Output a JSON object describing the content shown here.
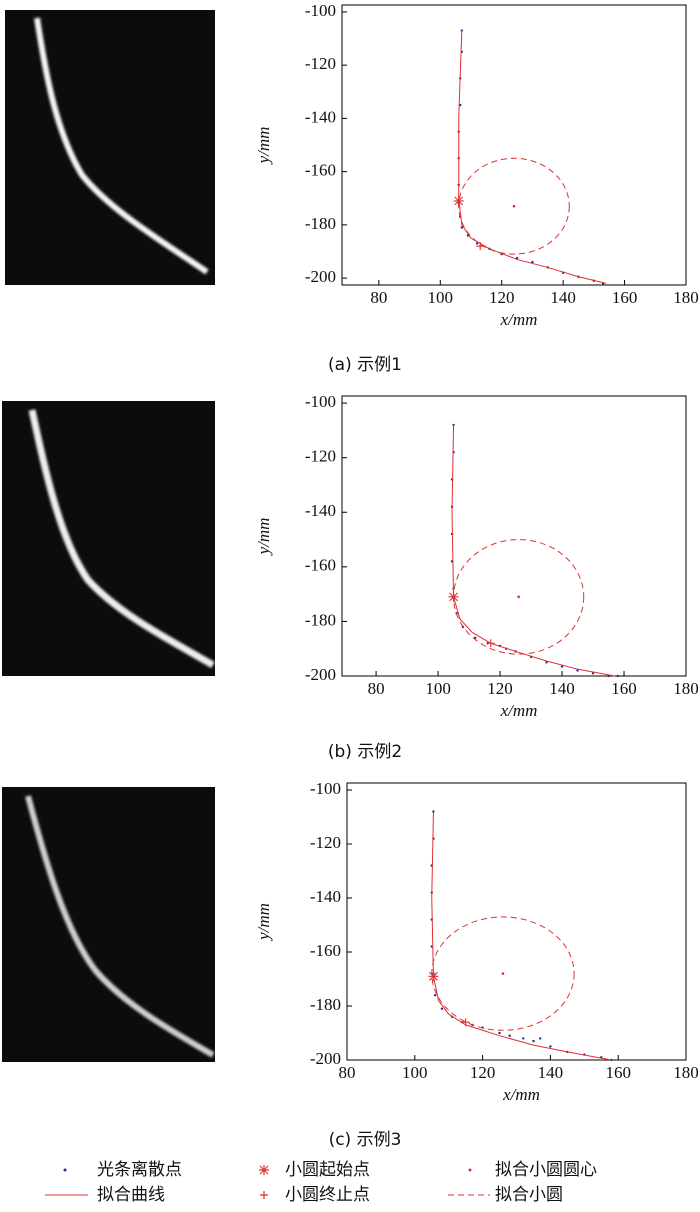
{
  "chart_data": [
    {
      "type": "scatter",
      "caption": "(a) 示例1",
      "xlabel": "x/mm",
      "ylabel": "y/mm",
      "xlim": [
        68,
        180
      ],
      "ylim": [
        -202.6,
        -97.4
      ],
      "xticks": [
        80,
        100,
        120,
        140,
        160,
        180
      ],
      "yticks": [
        -100,
        -120,
        -140,
        -160,
        -180,
        -200
      ],
      "series": [
        {
          "name": "光条离散点",
          "color": "#1f2f8f",
          "kind": "points",
          "x": [
            107,
            107,
            106.5,
            106.5,
            106,
            106,
            106,
            106,
            106.5,
            107,
            109,
            112,
            116,
            120,
            125,
            130,
            135,
            140,
            145,
            150,
            153
          ],
          "y": [
            -107,
            -115,
            -125,
            -135,
            -145,
            -155,
            -165,
            -172,
            -177,
            -181,
            -184,
            -187,
            -189,
            -191,
            -192.5,
            -194,
            -196,
            -198,
            -199.5,
            -201,
            -202
          ]
        },
        {
          "name": "拟合曲线",
          "color": "#e03030",
          "kind": "line",
          "x": [
            107,
            106,
            106,
            107,
            110,
            116,
            125,
            135,
            145,
            154
          ],
          "y": [
            -107,
            -140,
            -170,
            -180,
            -185,
            -189,
            -193,
            -196,
            -199.5,
            -202
          ]
        },
        {
          "name": "小圆起始点",
          "color": "#e03030",
          "kind": "star",
          "x": [
            106
          ],
          "y": [
            -171
          ]
        },
        {
          "name": "小圆终止点",
          "color": "#e03030",
          "kind": "plus",
          "x": [
            113
          ],
          "y": [
            -188
          ]
        },
        {
          "name": "拟合小圆圆心",
          "color": "#e03030",
          "kind": "dot",
          "x": [
            124
          ],
          "y": [
            -173
          ]
        },
        {
          "name": "拟合小圆",
          "color": "#e03030",
          "kind": "circle",
          "x": [
            124
          ],
          "y": [
            -173
          ],
          "r": [
            18
          ]
        }
      ]
    },
    {
      "type": "scatter",
      "caption": "(b) 示例2",
      "xlabel": "x/mm",
      "ylabel": "y/mm",
      "xlim": [
        69,
        180
      ],
      "ylim": [
        -200,
        -97.4
      ],
      "xticks": [
        80,
        100,
        120,
        140,
        160,
        180
      ],
      "yticks": [
        -100,
        -120,
        -140,
        -160,
        -180,
        -200
      ],
      "series": [
        {
          "name": "光条离散点",
          "color": "#1f2f8f",
          "kind": "points",
          "x": [
            105,
            105,
            104.5,
            104.5,
            104.5,
            104.5,
            105,
            106,
            108,
            112,
            116,
            120,
            122,
            125,
            130,
            135,
            140,
            145,
            150,
            155,
            158
          ],
          "y": [
            -108,
            -118,
            -128,
            -138,
            -148,
            -158,
            -168,
            -177,
            -182,
            -186,
            -188,
            -189,
            -190,
            -191,
            -193,
            -195,
            -196.5,
            -198,
            -199,
            -200,
            -200
          ]
        },
        {
          "name": "拟合曲线",
          "color": "#e03030",
          "kind": "line",
          "x": [
            105,
            104.5,
            105,
            107,
            111,
            117,
            125,
            135,
            145,
            157
          ],
          "y": [
            -108,
            -140,
            -171,
            -179,
            -184,
            -188,
            -191,
            -194.5,
            -197.5,
            -200
          ]
        },
        {
          "name": "小圆起始点",
          "color": "#e03030",
          "kind": "star",
          "x": [
            105
          ],
          "y": [
            -171
          ]
        },
        {
          "name": "小圆终止点",
          "color": "#e03030",
          "kind": "plus",
          "x": [
            117
          ],
          "y": [
            -188
          ]
        },
        {
          "name": "拟合小圆圆心",
          "color": "#e03030",
          "kind": "dot",
          "x": [
            126
          ],
          "y": [
            -171
          ]
        },
        {
          "name": "拟合小圆",
          "color": "#e03030",
          "kind": "circle",
          "x": [
            126
          ],
          "y": [
            -171
          ],
          "r": [
            21
          ]
        }
      ]
    },
    {
      "type": "scatter",
      "caption": "(c) 示例3",
      "xlabel": "x/mm",
      "ylabel": "y/mm",
      "xlim": [
        80,
        180
      ],
      "ylim": [
        -200,
        -97.4
      ],
      "xticks": [
        80,
        100,
        120,
        140,
        160,
        180
      ],
      "yticks": [
        -100,
        -120,
        -140,
        -160,
        -180,
        -200
      ],
      "series": [
        {
          "name": "光条离散点",
          "color": "#1f2f8f",
          "kind": "points",
          "x": [
            105.5,
            105.5,
            105,
            105,
            105,
            105,
            105.5,
            106,
            108,
            111,
            114,
            117,
            120,
            125,
            128,
            132,
            135,
            137,
            140,
            145,
            150,
            155,
            158
          ],
          "y": [
            -108,
            -118,
            -128,
            -138,
            -148,
            -158,
            -168,
            -176,
            -181,
            -184,
            -186,
            -187,
            -188,
            -190,
            -191,
            -192,
            -193,
            -192,
            -195,
            -197,
            -198,
            -199,
            -200
          ]
        },
        {
          "name": "拟合曲线",
          "color": "#e03030",
          "kind": "line",
          "x": [
            105.5,
            105,
            105.5,
            107,
            110,
            115,
            125,
            135,
            145,
            158
          ],
          "y": [
            -108,
            -140,
            -169,
            -178,
            -183,
            -187,
            -191,
            -194.5,
            -197,
            -200
          ]
        },
        {
          "name": "小圆起始点",
          "color": "#e03030",
          "kind": "star",
          "x": [
            105.5
          ],
          "y": [
            -169
          ]
        },
        {
          "name": "小圆终止点",
          "color": "#e03030",
          "kind": "plus",
          "x": [
            115
          ],
          "y": [
            -186
          ]
        },
        {
          "name": "拟合小圆圆心",
          "color": "#e03030",
          "kind": "dot",
          "x": [
            126
          ],
          "y": [
            -168
          ]
        },
        {
          "name": "拟合小圆",
          "color": "#e03030",
          "kind": "circle",
          "x": [
            126
          ],
          "y": [
            -168
          ],
          "r": [
            21
          ]
        }
      ]
    }
  ]
}
